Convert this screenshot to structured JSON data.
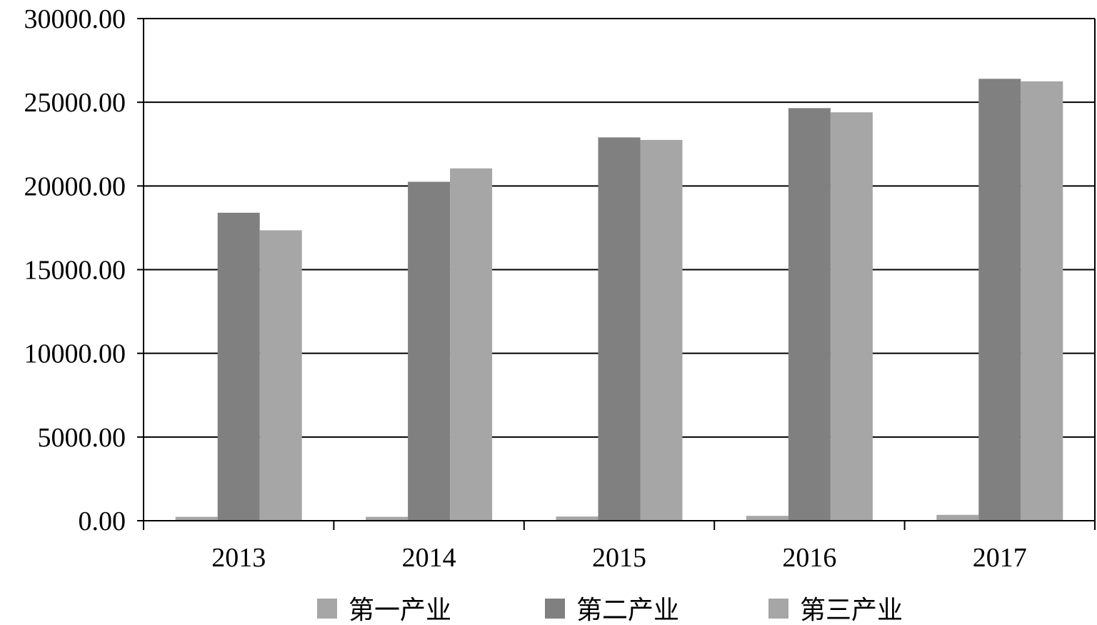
{
  "chart_data": {
    "type": "bar",
    "title": "",
    "xlabel": "",
    "ylabel": "",
    "categories": [
      "2013",
      "2014",
      "2015",
      "2016",
      "2017"
    ],
    "series": [
      {
        "name": "第一产业",
        "color": "#a6a6a6",
        "values": [
          230,
          230,
          250,
          290,
          350
        ]
      },
      {
        "name": "第二产业",
        "color": "#808080",
        "values": [
          18400,
          20250,
          22900,
          24650,
          26400
        ]
      },
      {
        "name": "第三产业",
        "color": "#a6a6a6",
        "values": [
          17350,
          21050,
          22750,
          24400,
          26250
        ]
      }
    ],
    "ylim": [
      0,
      30000
    ],
    "yticks": [
      "0.00",
      "5000.00",
      "10000.00",
      "15000.00",
      "20000.00",
      "25000.00",
      "30000.00"
    ],
    "grid": true,
    "legend_position": "bottom"
  }
}
